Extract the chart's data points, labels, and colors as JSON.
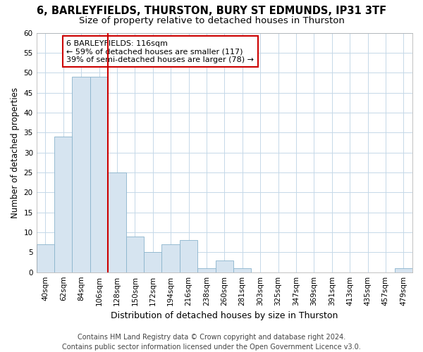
{
  "title1": "6, BARLEYFIELDS, THURSTON, BURY ST EDMUNDS, IP31 3TF",
  "title2": "Size of property relative to detached houses in Thurston",
  "xlabel": "Distribution of detached houses by size in Thurston",
  "ylabel": "Number of detached properties",
  "footer1": "Contains HM Land Registry data © Crown copyright and database right 2024.",
  "footer2": "Contains public sector information licensed under the Open Government Licence v3.0.",
  "bar_labels": [
    "40sqm",
    "62sqm",
    "84sqm",
    "106sqm",
    "128sqm",
    "150sqm",
    "172sqm",
    "194sqm",
    "216sqm",
    "238sqm",
    "260sqm",
    "281sqm",
    "303sqm",
    "325sqm",
    "347sqm",
    "369sqm",
    "391sqm",
    "413sqm",
    "435sqm",
    "457sqm",
    "479sqm"
  ],
  "bar_values": [
    7,
    34,
    49,
    49,
    25,
    9,
    5,
    7,
    8,
    1,
    3,
    1,
    0,
    0,
    0,
    0,
    0,
    0,
    0,
    0,
    1
  ],
  "bar_color": "#d6e4f0",
  "bar_edgecolor": "#8ab4cc",
  "vline_x": 3.5,
  "annotation_text": "6 BARLEYFIELDS: 116sqm\n← 59% of detached houses are smaller (117)\n39% of semi-detached houses are larger (78) →",
  "annotation_box_facecolor": "white",
  "annotation_box_edgecolor": "#cc0000",
  "vline_color": "#cc0000",
  "ylim": [
    0,
    60
  ],
  "yticks": [
    0,
    5,
    10,
    15,
    20,
    25,
    30,
    35,
    40,
    45,
    50,
    55,
    60
  ],
  "bg_color": "white",
  "axes_bg_color": "white",
  "grid_color": "#c5d8e8",
  "title1_fontsize": 10.5,
  "title2_fontsize": 9.5,
  "xlabel_fontsize": 9,
  "ylabel_fontsize": 8.5,
  "tick_fontsize": 7.5,
  "annotation_fontsize": 8,
  "footer_fontsize": 7
}
